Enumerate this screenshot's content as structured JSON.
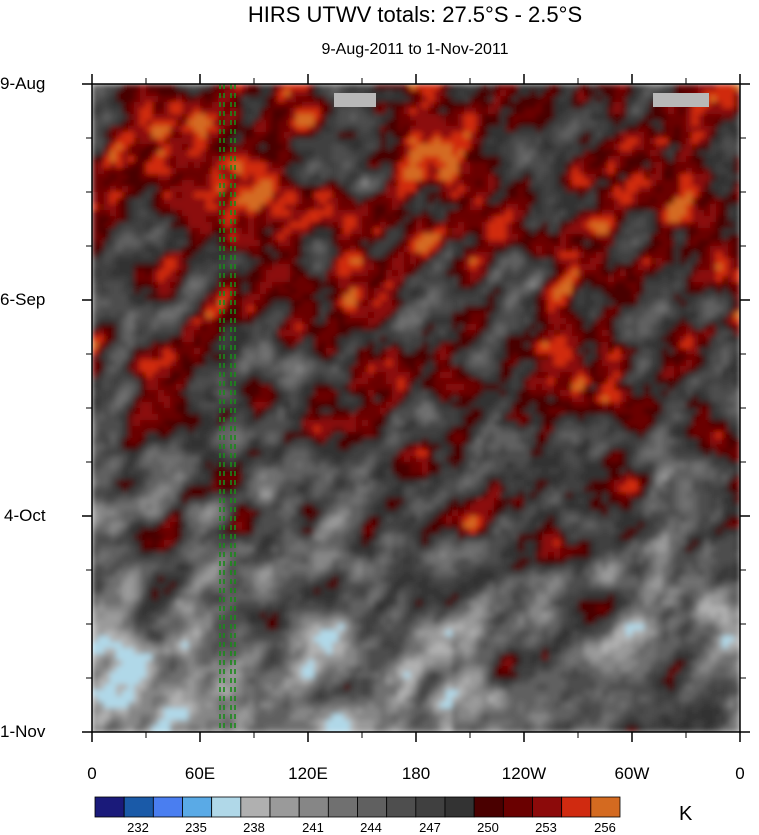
{
  "chart_data": {
    "type": "heatmap",
    "title": "HIRS UTWV totals: 27.5°S - 2.5°S",
    "subtitle": "9-Aug-2011 to 1-Nov-2011",
    "y_ticks": [
      "9-Aug",
      "6-Sep",
      "4-Oct",
      "1-Nov"
    ],
    "x_ticks": [
      "0",
      "60E",
      "120E",
      "180",
      "120W",
      "60W",
      "0"
    ],
    "colorbar": {
      "unit": "K",
      "tick_labels": [
        "232",
        "235",
        "238",
        "241",
        "244",
        "247",
        "250",
        "253",
        "256"
      ],
      "levels": [
        231,
        232,
        233,
        234,
        235,
        236,
        237,
        238,
        239,
        240,
        241,
        242,
        243,
        244,
        245,
        246,
        247,
        248,
        249,
        250,
        251,
        252,
        253,
        254,
        255,
        256,
        257
      ],
      "colors": [
        "#1a1a7a",
        "#1a5aa8",
        "#4a7ef0",
        "#5aaae6",
        "#b0d8e8",
        "#b0b0b0",
        "#9a9a9a",
        "#868686",
        "#707070",
        "#606060",
        "#4e4e4e",
        "#404040",
        "#333333",
        "#4a0000",
        "#6a0000",
        "#8c0a0a",
        "#d02a10",
        "#d46a20"
      ]
    },
    "dashed_lines_x": [
      "70E",
      "77E"
    ],
    "dashed_color": "#1a8a1a"
  }
}
